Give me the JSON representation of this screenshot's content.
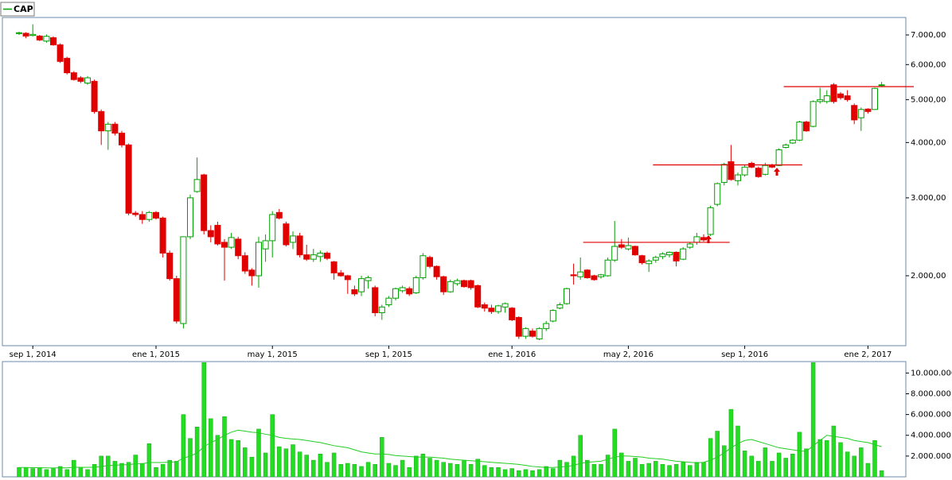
{
  "chart_data": [
    {
      "type": "candlestick",
      "name": "CAP",
      "log_scale": true,
      "up_color": "#00a000",
      "down_color": "#e00000",
      "categories": [
        null,
        null,
        "sep 1, 2014",
        null,
        null,
        null,
        null,
        null,
        null,
        null,
        null,
        null,
        null,
        null,
        null,
        null,
        null,
        null,
        null,
        null,
        "ene 1, 2015",
        null,
        null,
        null,
        null,
        null,
        null,
        null,
        null,
        null,
        null,
        null,
        null,
        null,
        null,
        null,
        null,
        "may 1, 2015",
        null,
        null,
        null,
        null,
        null,
        null,
        null,
        null,
        null,
        null,
        null,
        null,
        null,
        null,
        null,
        null,
        "sep 1, 2015",
        null,
        null,
        null,
        null,
        null,
        null,
        null,
        null,
        null,
        null,
        null,
        null,
        null,
        null,
        null,
        null,
        null,
        "ene 1, 2016",
        null,
        null,
        null,
        null,
        null,
        null,
        null,
        null,
        null,
        null,
        null,
        null,
        null,
        null,
        null,
        null,
        "may 2, 2016",
        null,
        null,
        null,
        null,
        null,
        null,
        null,
        null,
        null,
        null,
        null,
        null,
        null,
        null,
        null,
        null,
        "sep 1, 2016",
        null,
        null,
        null,
        null,
        null,
        null,
        null,
        null,
        null,
        null,
        null,
        null,
        null,
        null,
        null,
        null,
        null,
        "ene 2, 2017",
        null,
        null
      ],
      "ohlc": [
        [
          7050,
          7120,
          7000,
          7080
        ],
        [
          7060,
          7100,
          6880,
          6960
        ],
        [
          6980,
          7400,
          6950,
          7020
        ],
        [
          6960,
          7000,
          6780,
          6820
        ],
        [
          6780,
          7020,
          6720,
          6950
        ],
        [
          6900,
          6950,
          6620,
          6650
        ],
        [
          6650,
          6700,
          6050,
          6100
        ],
        [
          6200,
          6250,
          5700,
          5750
        ],
        [
          5750,
          5800,
          5520,
          5550
        ],
        [
          5600,
          5650,
          5450,
          5500
        ],
        [
          5450,
          5650,
          5400,
          5600
        ],
        [
          5500,
          5550,
          4650,
          4700
        ],
        [
          4700,
          4750,
          3950,
          4250
        ],
        [
          4250,
          4450,
          3850,
          4400
        ],
        [
          4400,
          4450,
          4150,
          4200
        ],
        [
          4200,
          4250,
          3900,
          3950
        ],
        [
          3950,
          3980,
          2740,
          2770
        ],
        [
          2770,
          2800,
          2720,
          2750
        ],
        [
          2750,
          2800,
          2620,
          2680
        ],
        [
          2680,
          2800,
          2650,
          2780
        ],
        [
          2780,
          2800,
          2680,
          2700
        ],
        [
          2700,
          2720,
          2200,
          2250
        ],
        [
          2250,
          2280,
          1950,
          1970
        ],
        [
          1970,
          2000,
          1560,
          1580
        ],
        [
          1560,
          2450,
          1520,
          2450
        ],
        [
          2450,
          3050,
          2420,
          3000
        ],
        [
          3100,
          3700,
          3080,
          3300
        ],
        [
          3380,
          3400,
          2480,
          2530
        ],
        [
          2530,
          2600,
          2380,
          2450
        ],
        [
          2600,
          2650,
          2340,
          2360
        ],
        [
          2380,
          2420,
          1950,
          2320
        ],
        [
          2320,
          2500,
          2300,
          2440
        ],
        [
          2420,
          2450,
          2180,
          2220
        ],
        [
          2220,
          2260,
          2020,
          2050
        ],
        [
          2060,
          2080,
          1900,
          2000
        ],
        [
          2000,
          2450,
          1880,
          2380
        ],
        [
          2300,
          2480,
          2150,
          2400
        ],
        [
          2400,
          2800,
          2200,
          2750
        ],
        [
          2780,
          2830,
          2680,
          2700
        ],
        [
          2620,
          2650,
          2330,
          2350
        ],
        [
          2380,
          2520,
          2300,
          2460
        ],
        [
          2460,
          2500,
          2200,
          2230
        ],
        [
          2230,
          2350,
          2160,
          2180
        ],
        [
          2180,
          2300,
          2150,
          2230
        ],
        [
          2210,
          2280,
          2150,
          2250
        ],
        [
          2250,
          2270,
          2170,
          2190
        ],
        [
          2150,
          2160,
          1960,
          2030
        ],
        [
          2030,
          2060,
          1990,
          2000
        ],
        [
          2000,
          2010,
          1820,
          1960
        ],
        [
          1860,
          1900,
          1800,
          1820
        ],
        [
          1840,
          2000,
          1800,
          1970
        ],
        [
          1950,
          2000,
          1870,
          1980
        ],
        [
          1880,
          1900,
          1620,
          1650
        ],
        [
          1650,
          1720,
          1590,
          1700
        ],
        [
          1720,
          1800,
          1700,
          1780
        ],
        [
          1780,
          1880,
          1760,
          1870
        ],
        [
          1850,
          1900,
          1830,
          1880
        ],
        [
          1870,
          1890,
          1800,
          1820
        ],
        [
          1830,
          2000,
          1820,
          1980
        ],
        [
          1980,
          2250,
          1960,
          2220
        ],
        [
          2200,
          2220,
          2080,
          2100
        ],
        [
          2100,
          2110,
          1960,
          1990
        ],
        [
          1990,
          2000,
          1810,
          1840
        ],
        [
          1840,
          1960,
          1830,
          1940
        ],
        [
          1920,
          1970,
          1900,
          1950
        ],
        [
          1950,
          1960,
          1880,
          1890
        ],
        [
          1950,
          1960,
          1860,
          1880
        ],
        [
          1900,
          1910,
          1690,
          1700
        ],
        [
          1720,
          1740,
          1660,
          1690
        ],
        [
          1690,
          1720,
          1640,
          1660
        ],
        [
          1660,
          1720,
          1640,
          1710
        ],
        [
          1700,
          1740,
          1650,
          1730
        ],
        [
          1690,
          1700,
          1580,
          1590
        ],
        [
          1610,
          1620,
          1440,
          1460
        ],
        [
          1460,
          1530,
          1440,
          1520
        ],
        [
          1500,
          1520,
          1450,
          1460
        ],
        [
          1440,
          1530,
          1430,
          1520
        ],
        [
          1520,
          1580,
          1500,
          1560
        ],
        [
          1580,
          1680,
          1570,
          1670
        ],
        [
          1690,
          1740,
          1680,
          1720
        ],
        [
          1730,
          1880,
          1720,
          1870
        ],
        [
          2010,
          2130,
          1910,
          2000
        ],
        [
          1990,
          2200,
          1960,
          2040
        ],
        [
          2060,
          2070,
          1970,
          1980
        ],
        [
          2000,
          2010,
          1950,
          1960
        ],
        [
          1990,
          2020,
          1970,
          2010
        ],
        [
          2000,
          2200,
          1990,
          2170
        ],
        [
          2170,
          2660,
          2150,
          2330
        ],
        [
          2350,
          2420,
          2300,
          2320
        ],
        [
          2300,
          2440,
          2280,
          2340
        ],
        [
          2330,
          2340,
          2220,
          2230
        ],
        [
          2220,
          2230,
          2120,
          2140
        ],
        [
          2130,
          2180,
          2040,
          2160
        ],
        [
          2170,
          2220,
          2140,
          2200
        ],
        [
          2210,
          2260,
          2180,
          2240
        ],
        [
          2230,
          2270,
          2200,
          2260
        ],
        [
          2260,
          2270,
          2100,
          2160
        ],
        [
          2180,
          2320,
          2170,
          2300
        ],
        [
          2320,
          2380,
          2300,
          2360
        ],
        [
          2380,
          2500,
          2350,
          2450
        ],
        [
          2440,
          2480,
          2390,
          2410
        ],
        [
          2480,
          2880,
          2460,
          2850
        ],
        [
          2900,
          3250,
          2870,
          3230
        ],
        [
          3250,
          3600,
          3200,
          3570
        ],
        [
          3620,
          3950,
          3280,
          3300
        ],
        [
          3280,
          3420,
          3200,
          3380
        ],
        [
          3380,
          3560,
          3350,
          3520
        ],
        [
          3590,
          3620,
          3500,
          3520
        ],
        [
          3500,
          3530,
          3330,
          3350
        ],
        [
          3390,
          3600,
          3370,
          3550
        ],
        [
          3550,
          3580,
          3500,
          3520
        ],
        [
          3550,
          3880,
          3540,
          3850
        ],
        [
          3900,
          3980,
          3880,
          3950
        ],
        [
          3990,
          4070,
          3970,
          4050
        ],
        [
          4050,
          4480,
          4030,
          4450
        ],
        [
          4450,
          4480,
          4230,
          4250
        ],
        [
          4350,
          4980,
          4330,
          4950
        ],
        [
          4950,
          5320,
          4900,
          5000
        ],
        [
          4950,
          5250,
          4900,
          5100
        ],
        [
          5400,
          5450,
          4900,
          4950
        ],
        [
          5150,
          5200,
          5000,
          5050
        ],
        [
          5100,
          5250,
          4950,
          5000
        ],
        [
          4850,
          4900,
          4400,
          4500
        ],
        [
          4550,
          4800,
          4250,
          4750
        ],
        [
          4760,
          4780,
          4650,
          4700
        ],
        [
          4750,
          5320,
          4740,
          5300
        ],
        [
          5380,
          5480,
          5350,
          5400
        ]
      ],
      "levels": [
        {
          "value": 2380,
          "start": 82.4,
          "end": 103.8
        },
        {
          "value": 3560,
          "start": 92.6,
          "end": 114.4
        },
        {
          "value": 5350,
          "start": 111.7,
          "end": 130.7
        }
      ],
      "level_color": "#e00000",
      "ylim": [
        1390,
        7666
      ],
      "yticks": [
        {
          "value": 2000,
          "label": "2.000,00"
        },
        {
          "value": 3000,
          "label": "3.000,00"
        },
        {
          "value": 4000,
          "label": "4.000,00"
        },
        {
          "value": 5000,
          "label": "5.000,00"
        },
        {
          "value": 6000,
          "label": "6.000,00"
        },
        {
          "value": 7000,
          "label": "7.000,00"
        }
      ]
    },
    {
      "type": "bar",
      "color": "#22dd22",
      "average_color": "#22cc22",
      "values": [
        900000,
        900000,
        800000,
        900000,
        700000,
        800000,
        1000000,
        700000,
        1600000,
        900000,
        700000,
        1200000,
        2000000,
        2000000,
        1500000,
        1300000,
        1400000,
        2100000,
        1300000,
        3200000,
        900000,
        1200000,
        1600000,
        1500000,
        6000000,
        3700000,
        4800000,
        11000000,
        5600000,
        4000000,
        5800000,
        3600000,
        3500000,
        2800000,
        1900000,
        4600000,
        2300000,
        6000000,
        2900000,
        2700000,
        3100000,
        2400000,
        2100000,
        1600000,
        2200000,
        1400000,
        2300000,
        1200000,
        1300000,
        1200000,
        1000000,
        1400000,
        1200000,
        3800000,
        1300000,
        1100000,
        1600000,
        900000,
        2000000,
        2200000,
        1800000,
        1600000,
        1400000,
        1300000,
        1200000,
        1600000,
        1200000,
        1700000,
        1100000,
        900000,
        900000,
        700000,
        800000,
        600000,
        700000,
        600000,
        700000,
        1000000,
        800000,
        1600000,
        1400000,
        2000000,
        4000000,
        1600000,
        1200000,
        1200000,
        2100000,
        4600000,
        2300000,
        1500000,
        1800000,
        1200000,
        1300000,
        1500000,
        1200000,
        1100000,
        1200000,
        1400000,
        1100000,
        1400000,
        1400000,
        3700000,
        4400000,
        3000000,
        6500000,
        4900000,
        2500000,
        2000000,
        1500000,
        2800000,
        1500000,
        2300000,
        1800000,
        2200000,
        4300000,
        2700000,
        11000000,
        3600000,
        3500000,
        4900000,
        3300000,
        2400000,
        2000000,
        2800000,
        1300000,
        3500000,
        600000
      ],
      "average": [
        900000,
        900000,
        880000,
        880000,
        860000,
        850000,
        870000,
        860000,
        920000,
        920000,
        910000,
        930000,
        1000000,
        1080000,
        1120000,
        1150000,
        1180000,
        1250000,
        1260000,
        1380000,
        1380000,
        1380000,
        1420000,
        1440000,
        1800000,
        2000000,
        2300000,
        2900000,
        3300000,
        3600000,
        4000000,
        4300000,
        4500000,
        4400000,
        4300000,
        4250000,
        4100000,
        4000000,
        3800000,
        3700000,
        3650000,
        3600000,
        3500000,
        3400000,
        3300000,
        3150000,
        3000000,
        2900000,
        2800000,
        2600000,
        2400000,
        2300000,
        2200000,
        2200000,
        2150000,
        2050000,
        2000000,
        1950000,
        1900000,
        1900000,
        1900000,
        1850000,
        1800000,
        1700000,
        1650000,
        1600000,
        1550000,
        1500000,
        1450000,
        1400000,
        1350000,
        1300000,
        1250000,
        1200000,
        1100000,
        1000000,
        950000,
        900000,
        900000,
        950000,
        1000000,
        1100000,
        1300000,
        1400000,
        1450000,
        1500000,
        1700000,
        1900000,
        2000000,
        2000000,
        1950000,
        1900000,
        1800000,
        1750000,
        1700000,
        1600000,
        1500000,
        1450000,
        1400000,
        1350000,
        1400000,
        1600000,
        1900000,
        2300000,
        2800000,
        3200000,
        3500000,
        3600000,
        3400000,
        3200000,
        3000000,
        2800000,
        2700000,
        2600000,
        2500000,
        2450000,
        3000000,
        3500000,
        4000000,
        3900000,
        3800000,
        3700000,
        3500000,
        3400000,
        3300000,
        3100000,
        2900000
      ],
      "ylim": [
        0,
        11100000
      ],
      "yticks": [
        {
          "value": 2000000,
          "label": "2.000.000"
        },
        {
          "value": 4000000,
          "label": "4.000.000"
        },
        {
          "value": 6000000,
          "label": "6.000.000"
        },
        {
          "value": 8000000,
          "label": "8.000.000"
        },
        {
          "value": 10000000,
          "label": "10.000.000"
        }
      ]
    }
  ]
}
